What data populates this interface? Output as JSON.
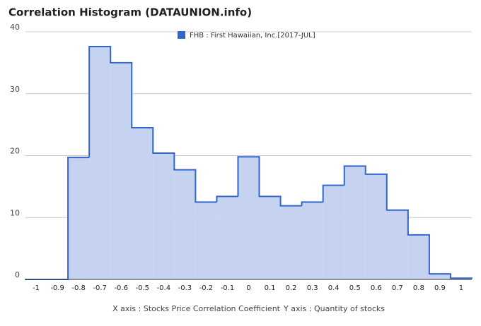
{
  "chart_data": {
    "type": "step-area",
    "title": "Correlation Histogram (DATAUNION.info)",
    "x_label": "X axis : Stocks Price Correlation Coefficient",
    "y_label": "Y axis : Quantity of stocks",
    "x": [
      -1,
      -0.9,
      -0.8,
      -0.7,
      -0.6,
      -0.5,
      -0.4,
      -0.3,
      -0.2,
      -0.1,
      0,
      0.1,
      0.2,
      0.3,
      0.4,
      0.5,
      0.6,
      0.7,
      0.8,
      0.9,
      1
    ],
    "series": [
      {
        "name": "FHB : First Hawaiian, Inc.[2017-JUL]",
        "color": "#3366cc",
        "fill": "#c5d2f0",
        "values": [
          0,
          0,
          19.7,
          37.6,
          35.0,
          24.5,
          20.4,
          17.7,
          12.5,
          13.4,
          19.8,
          13.4,
          11.9,
          12.5,
          15.2,
          18.3,
          17.0,
          11.2,
          7.2,
          0.9,
          0.2
        ]
      }
    ],
    "xlim": [
      -1.05,
      1.05
    ],
    "xticks": [
      -1,
      -0.9,
      -0.8,
      -0.7,
      -0.6,
      -0.5,
      -0.4,
      -0.3,
      -0.2,
      -0.1,
      0,
      0.1,
      0.2,
      0.3,
      0.4,
      0.5,
      0.6,
      0.7,
      0.8,
      0.9,
      1
    ],
    "ylim": [
      0,
      40
    ],
    "yticks": [
      0,
      10,
      20,
      30,
      40
    ],
    "grid": true,
    "legend": "top"
  }
}
